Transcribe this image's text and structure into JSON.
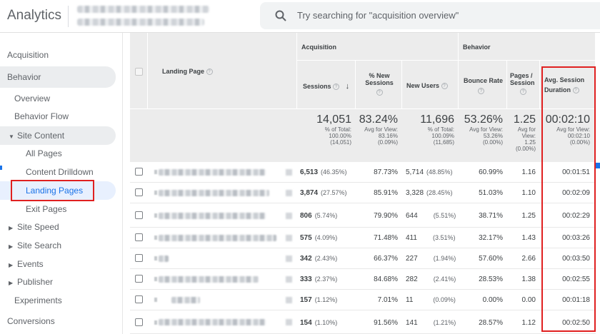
{
  "app": {
    "title": "Analytics",
    "search_placeholder": "Try searching for \"acquisition overview\""
  },
  "icons": {
    "search": "search-icon",
    "help": "help-icon",
    "sort": "arrow-down-icon",
    "caret_right": "caret-right-icon",
    "caret_down": "caret-down-icon"
  },
  "colors": {
    "accent": "#1a73e8",
    "highlight_border": "#e02020",
    "header_bg": "#ececec"
  },
  "sidebar": {
    "acquisition": "Acquisition",
    "behavior": "Behavior",
    "overview": "Overview",
    "behavior_flow": "Behavior Flow",
    "site_content": "Site Content",
    "all_pages": "All Pages",
    "content_drilldown": "Content Drilldown",
    "landing_pages": "Landing Pages",
    "exit_pages": "Exit Pages",
    "site_speed": "Site Speed",
    "site_search": "Site Search",
    "events": "Events",
    "publisher": "Publisher",
    "experiments": "Experiments",
    "conversions": "Conversions"
  },
  "table": {
    "group_acquisition": "Acquisition",
    "group_behavior": "Behavior",
    "col_landing_page": "Landing Page",
    "col_sessions": "Sessions",
    "col_new_sessions": "% New Sessions",
    "col_new_users": "New Users",
    "col_bounce_rate": "Bounce Rate",
    "col_pages_session": "Pages / Session",
    "col_avg_duration": "Avg. Session Duration",
    "help_glyph": "?",
    "sort_glyph": "↓",
    "totals": {
      "sessions": "14,051",
      "sessions_sub1": "% of Total:",
      "sessions_sub2": "100.00%",
      "sessions_sub3": "(14,051)",
      "new_sessions": "83.24%",
      "new_sessions_sub1": "Avg for View:",
      "new_sessions_sub2": "83.16%",
      "new_sessions_sub3": "(0.09%)",
      "new_users": "11,696",
      "new_users_sub1": "% of Total:",
      "new_users_sub2": "100.09%",
      "new_users_sub3": "(11,685)",
      "bounce_rate": "53.26%",
      "bounce_rate_sub1": "Avg for View:",
      "bounce_rate_sub2": "53.26%",
      "bounce_rate_sub3": "(0.00%)",
      "pages_session": "1.25",
      "pages_session_sub1": "Avg for",
      "pages_session_sub2": "View:",
      "pages_session_sub3": "1.25",
      "pages_session_sub4": "(0.00%)",
      "avg_duration": "00:02:10",
      "avg_duration_sub1": "Avg for View:",
      "avg_duration_sub2": "00:02:10",
      "avg_duration_sub3": "(0.00%)"
    },
    "rows": [
      {
        "sessions": "6,513",
        "sessions_pct": "(46.35%)",
        "new_sessions": "87.73%",
        "new_users": "5,714",
        "new_users_pct": "(48.85%)",
        "bounce_rate": "60.99%",
        "pages_session": "1.16",
        "avg_duration": "00:01:51"
      },
      {
        "sessions": "3,874",
        "sessions_pct": "(27.57%)",
        "new_sessions": "85.91%",
        "new_users": "3,328",
        "new_users_pct": "(28.45%)",
        "bounce_rate": "51.03%",
        "pages_session": "1.10",
        "avg_duration": "00:02:09"
      },
      {
        "sessions": "806",
        "sessions_pct": "(5.74%)",
        "new_sessions": "79.90%",
        "new_users": "644",
        "new_users_pct": "(5.51%)",
        "bounce_rate": "38.71%",
        "pages_session": "1.25",
        "avg_duration": "00:02:29"
      },
      {
        "sessions": "575",
        "sessions_pct": "(4.09%)",
        "new_sessions": "71.48%",
        "new_users": "411",
        "new_users_pct": "(3.51%)",
        "bounce_rate": "32.17%",
        "pages_session": "1.43",
        "avg_duration": "00:03:26"
      },
      {
        "sessions": "342",
        "sessions_pct": "(2.43%)",
        "new_sessions": "66.37%",
        "new_users": "227",
        "new_users_pct": "(1.94%)",
        "bounce_rate": "57.60%",
        "pages_session": "2.66",
        "avg_duration": "00:03:50"
      },
      {
        "sessions": "333",
        "sessions_pct": "(2.37%)",
        "new_sessions": "84.68%",
        "new_users": "282",
        "new_users_pct": "(2.41%)",
        "bounce_rate": "28.53%",
        "pages_session": "1.38",
        "avg_duration": "00:02:55"
      },
      {
        "sessions": "157",
        "sessions_pct": "(1.12%)",
        "new_sessions": "7.01%",
        "new_users": "11",
        "new_users_pct": "(0.09%)",
        "bounce_rate": "0.00%",
        "pages_session": "0.00",
        "avg_duration": "00:01:18"
      },
      {
        "sessions": "154",
        "sessions_pct": "(1.10%)",
        "new_sessions": "91.56%",
        "new_users": "141",
        "new_users_pct": "(1.21%)",
        "bounce_rate": "28.57%",
        "pages_session": "1.12",
        "avg_duration": "00:02:50"
      }
    ]
  }
}
